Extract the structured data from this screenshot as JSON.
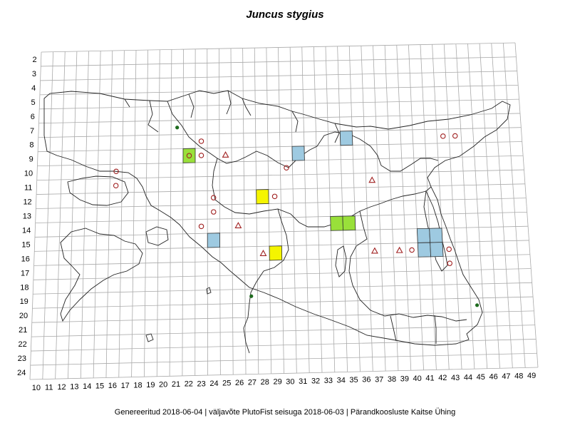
{
  "title": "Juncus stygius",
  "footer": "Genereeritud 2018-06-04  |  väljavõte PlutoFist seisuga 2018-06-03  |  Pärandkoosluste Kaitse Ühing",
  "axes": {
    "rows": [
      "2",
      "3",
      "4",
      "5",
      "6",
      "7",
      "8",
      "9",
      "10",
      "11",
      "12",
      "13",
      "14",
      "15",
      "16",
      "17",
      "18",
      "19",
      "20",
      "21",
      "22",
      "23",
      "24"
    ],
    "cols": [
      "10",
      "11",
      "12",
      "13",
      "14",
      "15",
      "16",
      "17",
      "18",
      "19",
      "20",
      "21",
      "22",
      "23",
      "24",
      "25",
      "26",
      "27",
      "28",
      "29",
      "30",
      "31",
      "32",
      "33",
      "34",
      "35",
      "36",
      "37",
      "38",
      "39",
      "40",
      "41",
      "42",
      "43",
      "44",
      "45",
      "46",
      "47",
      "48",
      "49"
    ]
  },
  "colors": {
    "blue_square": "#9ecae1",
    "green_square": "#99e03a",
    "yellow_square": "#f5f500",
    "open_marker": "#a02020",
    "green_dot": "#1e6b1e",
    "grid": "#aaaaaa",
    "outline": "#222222"
  },
  "chart_data": {
    "type": "map",
    "grid_columns": [
      10,
      49
    ],
    "grid_rows": [
      2,
      24
    ],
    "squares": [
      {
        "col": 22,
        "row": 9,
        "fill": "green"
      },
      {
        "col": 31,
        "row": 9,
        "fill": "blue"
      },
      {
        "col": 35,
        "row": 8,
        "fill": "blue"
      },
      {
        "col": 28,
        "row": 12,
        "fill": "yellow"
      },
      {
        "col": 34,
        "row": 14,
        "fill": "green"
      },
      {
        "col": 35,
        "row": 14,
        "fill": "green"
      },
      {
        "col": 24,
        "row": 15,
        "fill": "blue"
      },
      {
        "col": 29,
        "row": 16,
        "fill": "yellow"
      },
      {
        "col": 41,
        "row": 15,
        "fill": "blue"
      },
      {
        "col": 42,
        "row": 15,
        "fill": "blue"
      },
      {
        "col": 41,
        "row": 16,
        "fill": "blue"
      },
      {
        "col": 42,
        "row": 16,
        "fill": "blue"
      }
    ],
    "circles": [
      {
        "col": 23,
        "row": 8
      },
      {
        "col": 22,
        "row": 9
      },
      {
        "col": 23,
        "row": 9
      },
      {
        "col": 16,
        "row": 10
      },
      {
        "col": 16,
        "row": 11
      },
      {
        "col": 30,
        "row": 10
      },
      {
        "col": 24,
        "row": 12
      },
      {
        "col": 29,
        "row": 12
      },
      {
        "col": 24,
        "row": 13
      },
      {
        "col": 23,
        "row": 14
      },
      {
        "col": 40,
        "row": 16
      },
      {
        "col": 43,
        "row": 16
      },
      {
        "col": 43,
        "row": 17
      },
      {
        "col": 43,
        "row": 8
      },
      {
        "col": 44,
        "row": 8
      }
    ],
    "triangles": [
      {
        "col": 25,
        "row": 9
      },
      {
        "col": 37,
        "row": 11
      },
      {
        "col": 26,
        "row": 14
      },
      {
        "col": 28,
        "row": 16
      },
      {
        "col": 37,
        "row": 16
      },
      {
        "col": 39,
        "row": 16
      }
    ],
    "dots": [
      {
        "col": 21,
        "row": 7
      },
      {
        "col": 27,
        "row": 19
      },
      {
        "col": 45,
        "row": 20
      }
    ]
  }
}
